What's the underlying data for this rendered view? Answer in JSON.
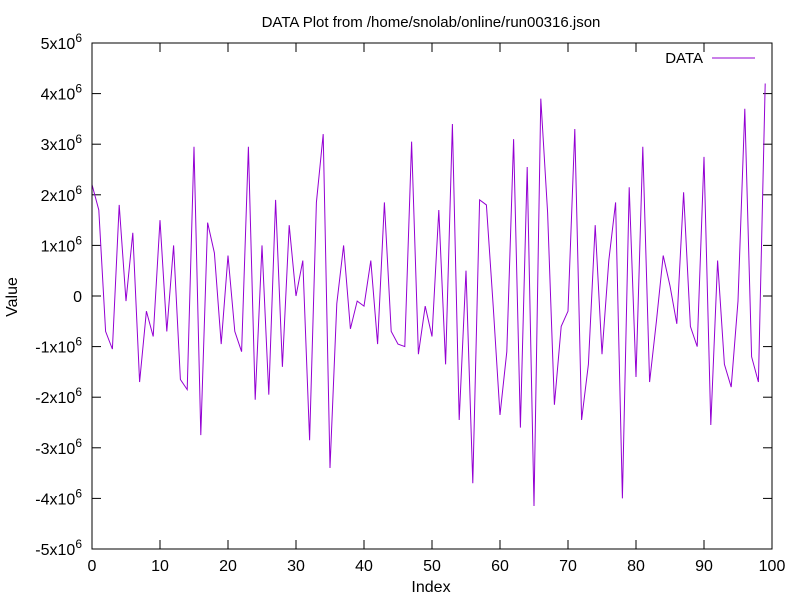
{
  "chart_data": {
    "type": "line",
    "title": "DATA Plot from /home/snolab/online/run00316.json",
    "xlabel": "Index",
    "ylabel": "Value",
    "xlim": [
      0,
      100
    ],
    "ylim": [
      -5000000,
      5000000
    ],
    "x_ticks": [
      0,
      10,
      20,
      30,
      40,
      50,
      60,
      70,
      80,
      90,
      100
    ],
    "x_tick_labels": [
      "0",
      "10",
      "20",
      "30",
      "40",
      "50",
      "60",
      "70",
      "80",
      "90",
      "100"
    ],
    "y_ticks": [
      -5000000,
      -4000000,
      -3000000,
      -2000000,
      -1000000,
      0,
      1000000,
      2000000,
      3000000,
      4000000,
      5000000
    ],
    "y_tick_labels": [
      {
        "base": "-5x10",
        "exp": "6"
      },
      {
        "base": "-4x10",
        "exp": "6"
      },
      {
        "base": "-3x10",
        "exp": "6"
      },
      {
        "base": "-2x10",
        "exp": "6"
      },
      {
        "base": "-1x10",
        "exp": "6"
      },
      {
        "base": "0",
        "exp": ""
      },
      {
        "base": "1x10",
        "exp": "6"
      },
      {
        "base": "2x10",
        "exp": "6"
      },
      {
        "base": "3x10",
        "exp": "6"
      },
      {
        "base": "4x10",
        "exp": "6"
      },
      {
        "base": "5x10",
        "exp": "6"
      }
    ],
    "grid": false,
    "legend_position": "top-right",
    "series": [
      {
        "name": "DATA",
        "color": "#9400d3",
        "x": [
          0,
          1,
          2,
          3,
          4,
          5,
          6,
          7,
          8,
          9,
          10,
          11,
          12,
          13,
          14,
          15,
          16,
          17,
          18,
          19,
          20,
          21,
          22,
          23,
          24,
          25,
          26,
          27,
          28,
          29,
          30,
          31,
          32,
          33,
          34,
          35,
          36,
          37,
          38,
          39,
          40,
          41,
          42,
          43,
          44,
          45,
          46,
          47,
          48,
          49,
          50,
          51,
          52,
          53,
          54,
          55,
          56,
          57,
          58,
          59,
          60,
          61,
          62,
          63,
          64,
          65,
          66,
          67,
          68,
          69,
          70,
          71,
          72,
          73,
          74,
          75,
          76,
          77,
          78,
          79,
          80,
          81,
          82,
          83,
          84,
          85,
          86,
          87,
          88,
          89,
          90,
          91,
          92,
          93,
          94,
          95,
          96,
          97,
          98,
          99
        ],
        "values": [
          2200000,
          1700000,
          -700000,
          -1050000,
          1800000,
          -100000,
          1250000,
          -1700000,
          -300000,
          -800000,
          1500000,
          -700000,
          1000000,
          -1650000,
          -1850000,
          2950000,
          -2750000,
          1450000,
          850000,
          -950000,
          800000,
          -700000,
          -1100000,
          2950000,
          -2050000,
          1000000,
          -1950000,
          1900000,
          -1400000,
          1400000,
          0,
          700000,
          -2850000,
          1850000,
          3200000,
          -3400000,
          -150000,
          1000000,
          -650000,
          -100000,
          -200000,
          700000,
          -950000,
          1850000,
          -700000,
          -950000,
          -1000000,
          3050000,
          -1150000,
          -200000,
          -800000,
          1700000,
          -1350000,
          3400000,
          -2450000,
          500000,
          -3700000,
          1900000,
          1800000,
          -200000,
          -2350000,
          -1100000,
          3100000,
          -2600000,
          2550000,
          -4150000,
          3900000,
          1650000,
          -2150000,
          -600000,
          -300000,
          3300000,
          -2450000,
          -1350000,
          1400000,
          -1150000,
          700000,
          1850000,
          -4000000,
          2150000,
          -1600000,
          2950000,
          -1700000,
          -500000,
          800000,
          200000,
          -550000,
          2050000,
          -600000,
          -1000000,
          2750000,
          -2550000,
          700000,
          -1350000,
          -1800000,
          -100000,
          3700000,
          -1200000,
          -1700000,
          4200000
        ]
      }
    ]
  }
}
